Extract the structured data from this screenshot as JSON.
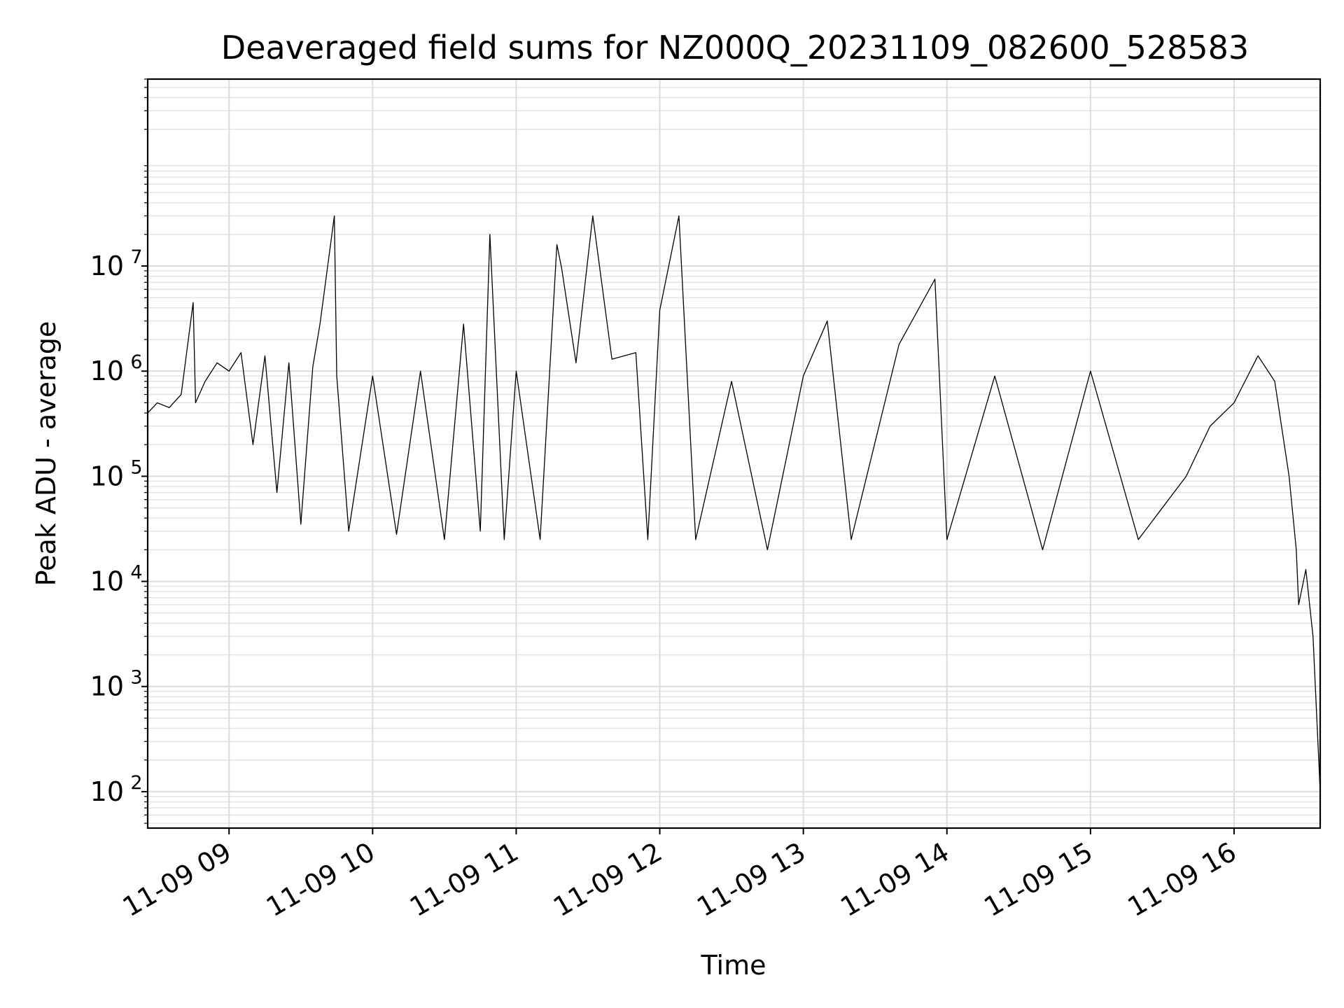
{
  "chart_data": {
    "type": "line",
    "title": "Deaveraged field sums for NZ000Q_20231109_082600_528583",
    "xlabel": "Time",
    "ylabel": "Peak ADU - average",
    "yscale": "log",
    "ylim": [
      45,
      600000000
    ],
    "xlim": [
      "2023-11-09 08:26",
      "2023-11-09 16:36"
    ],
    "grid": true,
    "line_color": "#000000",
    "x_ticks": [
      "11-09 09",
      "11-09 10",
      "11-09 11",
      "11-09 12",
      "11-09 13",
      "11-09 14",
      "11-09 15",
      "11-09 16"
    ],
    "y_ticks": [
      {
        "base": "10",
        "exp": "2",
        "value": 100
      },
      {
        "base": "10",
        "exp": "3",
        "value": 1000
      },
      {
        "base": "10",
        "exp": "4",
        "value": 10000
      },
      {
        "base": "10",
        "exp": "5",
        "value": 100000
      },
      {
        "base": "10",
        "exp": "6",
        "value": 1000000
      },
      {
        "base": "10",
        "exp": "7",
        "value": 10000000
      }
    ],
    "series": [
      {
        "points": [
          [
            "2023-11-09 08:26",
            400000
          ],
          [
            "2023-11-09 08:30",
            500000
          ],
          [
            "2023-11-09 08:35",
            450000
          ],
          [
            "2023-11-09 08:40",
            600000
          ],
          [
            "2023-11-09 08:45",
            4500000
          ],
          [
            "2023-11-09 08:46",
            500000
          ],
          [
            "2023-11-09 08:50",
            800000
          ],
          [
            "2023-11-09 08:55",
            1200000
          ],
          [
            "2023-11-09 09:00",
            1000000
          ],
          [
            "2023-11-09 09:05",
            1500000
          ],
          [
            "2023-11-09 09:10",
            200000
          ],
          [
            "2023-11-09 09:15",
            1400000
          ],
          [
            "2023-11-09 09:20",
            70000
          ],
          [
            "2023-11-09 09:25",
            1200000
          ],
          [
            "2023-11-09 09:30",
            35000
          ],
          [
            "2023-11-09 09:35",
            1100000
          ],
          [
            "2023-11-09 09:38",
            2800000
          ],
          [
            "2023-11-09 09:44",
            30000000
          ],
          [
            "2023-11-09 09:45",
            900000
          ],
          [
            "2023-11-09 09:50",
            30000
          ],
          [
            "2023-11-09 10:00",
            900000
          ],
          [
            "2023-11-09 10:10",
            28000
          ],
          [
            "2023-11-09 10:20",
            1000000
          ],
          [
            "2023-11-09 10:30",
            25000
          ],
          [
            "2023-11-09 10:38",
            2800000
          ],
          [
            "2023-11-09 10:45",
            30000
          ],
          [
            "2023-11-09 10:49",
            20000000
          ],
          [
            "2023-11-09 10:55",
            25000
          ],
          [
            "2023-11-09 11:00",
            1000000
          ],
          [
            "2023-11-09 11:10",
            25000
          ],
          [
            "2023-11-09 11:17",
            16000000
          ],
          [
            "2023-11-09 11:19",
            9500000
          ],
          [
            "2023-11-09 11:25",
            1200000
          ],
          [
            "2023-11-09 11:32",
            30000000
          ],
          [
            "2023-11-09 11:40",
            1300000
          ],
          [
            "2023-11-09 11:50",
            1500000
          ],
          [
            "2023-11-09 11:55",
            25000
          ],
          [
            "2023-11-09 12:00",
            3800000
          ],
          [
            "2023-11-09 12:08",
            30000000
          ],
          [
            "2023-11-09 12:15",
            25000
          ],
          [
            "2023-11-09 12:30",
            800000
          ],
          [
            "2023-11-09 12:45",
            20000
          ],
          [
            "2023-11-09 13:00",
            900000
          ],
          [
            "2023-11-09 13:10",
            3000000
          ],
          [
            "2023-11-09 13:20",
            25000
          ],
          [
            "2023-11-09 13:40",
            1800000
          ],
          [
            "2023-11-09 13:55",
            7500000
          ],
          [
            "2023-11-09 14:00",
            25000
          ],
          [
            "2023-11-09 14:20",
            900000
          ],
          [
            "2023-11-09 14:40",
            20000
          ],
          [
            "2023-11-09 15:00",
            1000000
          ],
          [
            "2023-11-09 15:20",
            25000
          ],
          [
            "2023-11-09 15:40",
            100000
          ],
          [
            "2023-11-09 15:50",
            300000
          ],
          [
            "2023-11-09 16:00",
            500000
          ],
          [
            "2023-11-09 16:10",
            1400000
          ],
          [
            "2023-11-09 16:17",
            800000
          ],
          [
            "2023-11-09 16:23",
            100000
          ],
          [
            "2023-11-09 16:26",
            20000
          ],
          [
            "2023-11-09 16:27",
            6000
          ],
          [
            "2023-11-09 16:30",
            13000
          ],
          [
            "2023-11-09 16:33",
            3000
          ],
          [
            "2023-11-09 16:36",
            100
          ]
        ]
      }
    ]
  }
}
